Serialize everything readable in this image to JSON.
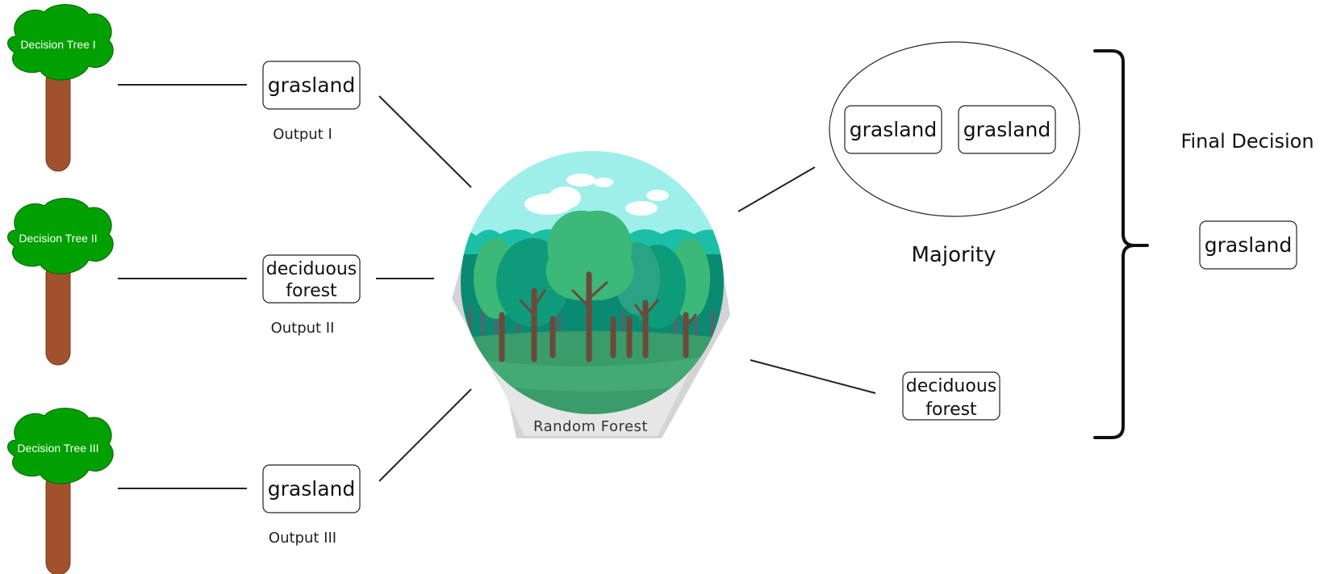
{
  "decision_trees": [
    {
      "label": "Decision Tree I"
    },
    {
      "label": "Decision Tree II"
    },
    {
      "label": "Decision Tree III"
    }
  ],
  "outputs": [
    {
      "value_lines": [
        "grasland"
      ],
      "caption": "Output I"
    },
    {
      "value_lines": [
        "deciduous",
        "forest"
      ],
      "caption": "Output II"
    },
    {
      "value_lines": [
        "grasland"
      ],
      "caption": "Output III"
    }
  ],
  "random_forest": {
    "label": "Random Forest"
  },
  "majority": {
    "label": "Majority",
    "items": [
      {
        "value": "grasland"
      },
      {
        "value": "grasland"
      }
    ]
  },
  "minority": {
    "value_lines": [
      "deciduous",
      "forest"
    ]
  },
  "final_decision": {
    "label": "Final Decision",
    "value": "grasland"
  },
  "colors": {
    "tree_crown": "#00a000",
    "tree_trunk": "#a0522d",
    "sky": "#9eeeea",
    "forest_dark": "#0b8a73",
    "forest_mid": "#3cb878",
    "ground": "#3a9c6a",
    "trunk_dark": "#6b4a3a"
  }
}
